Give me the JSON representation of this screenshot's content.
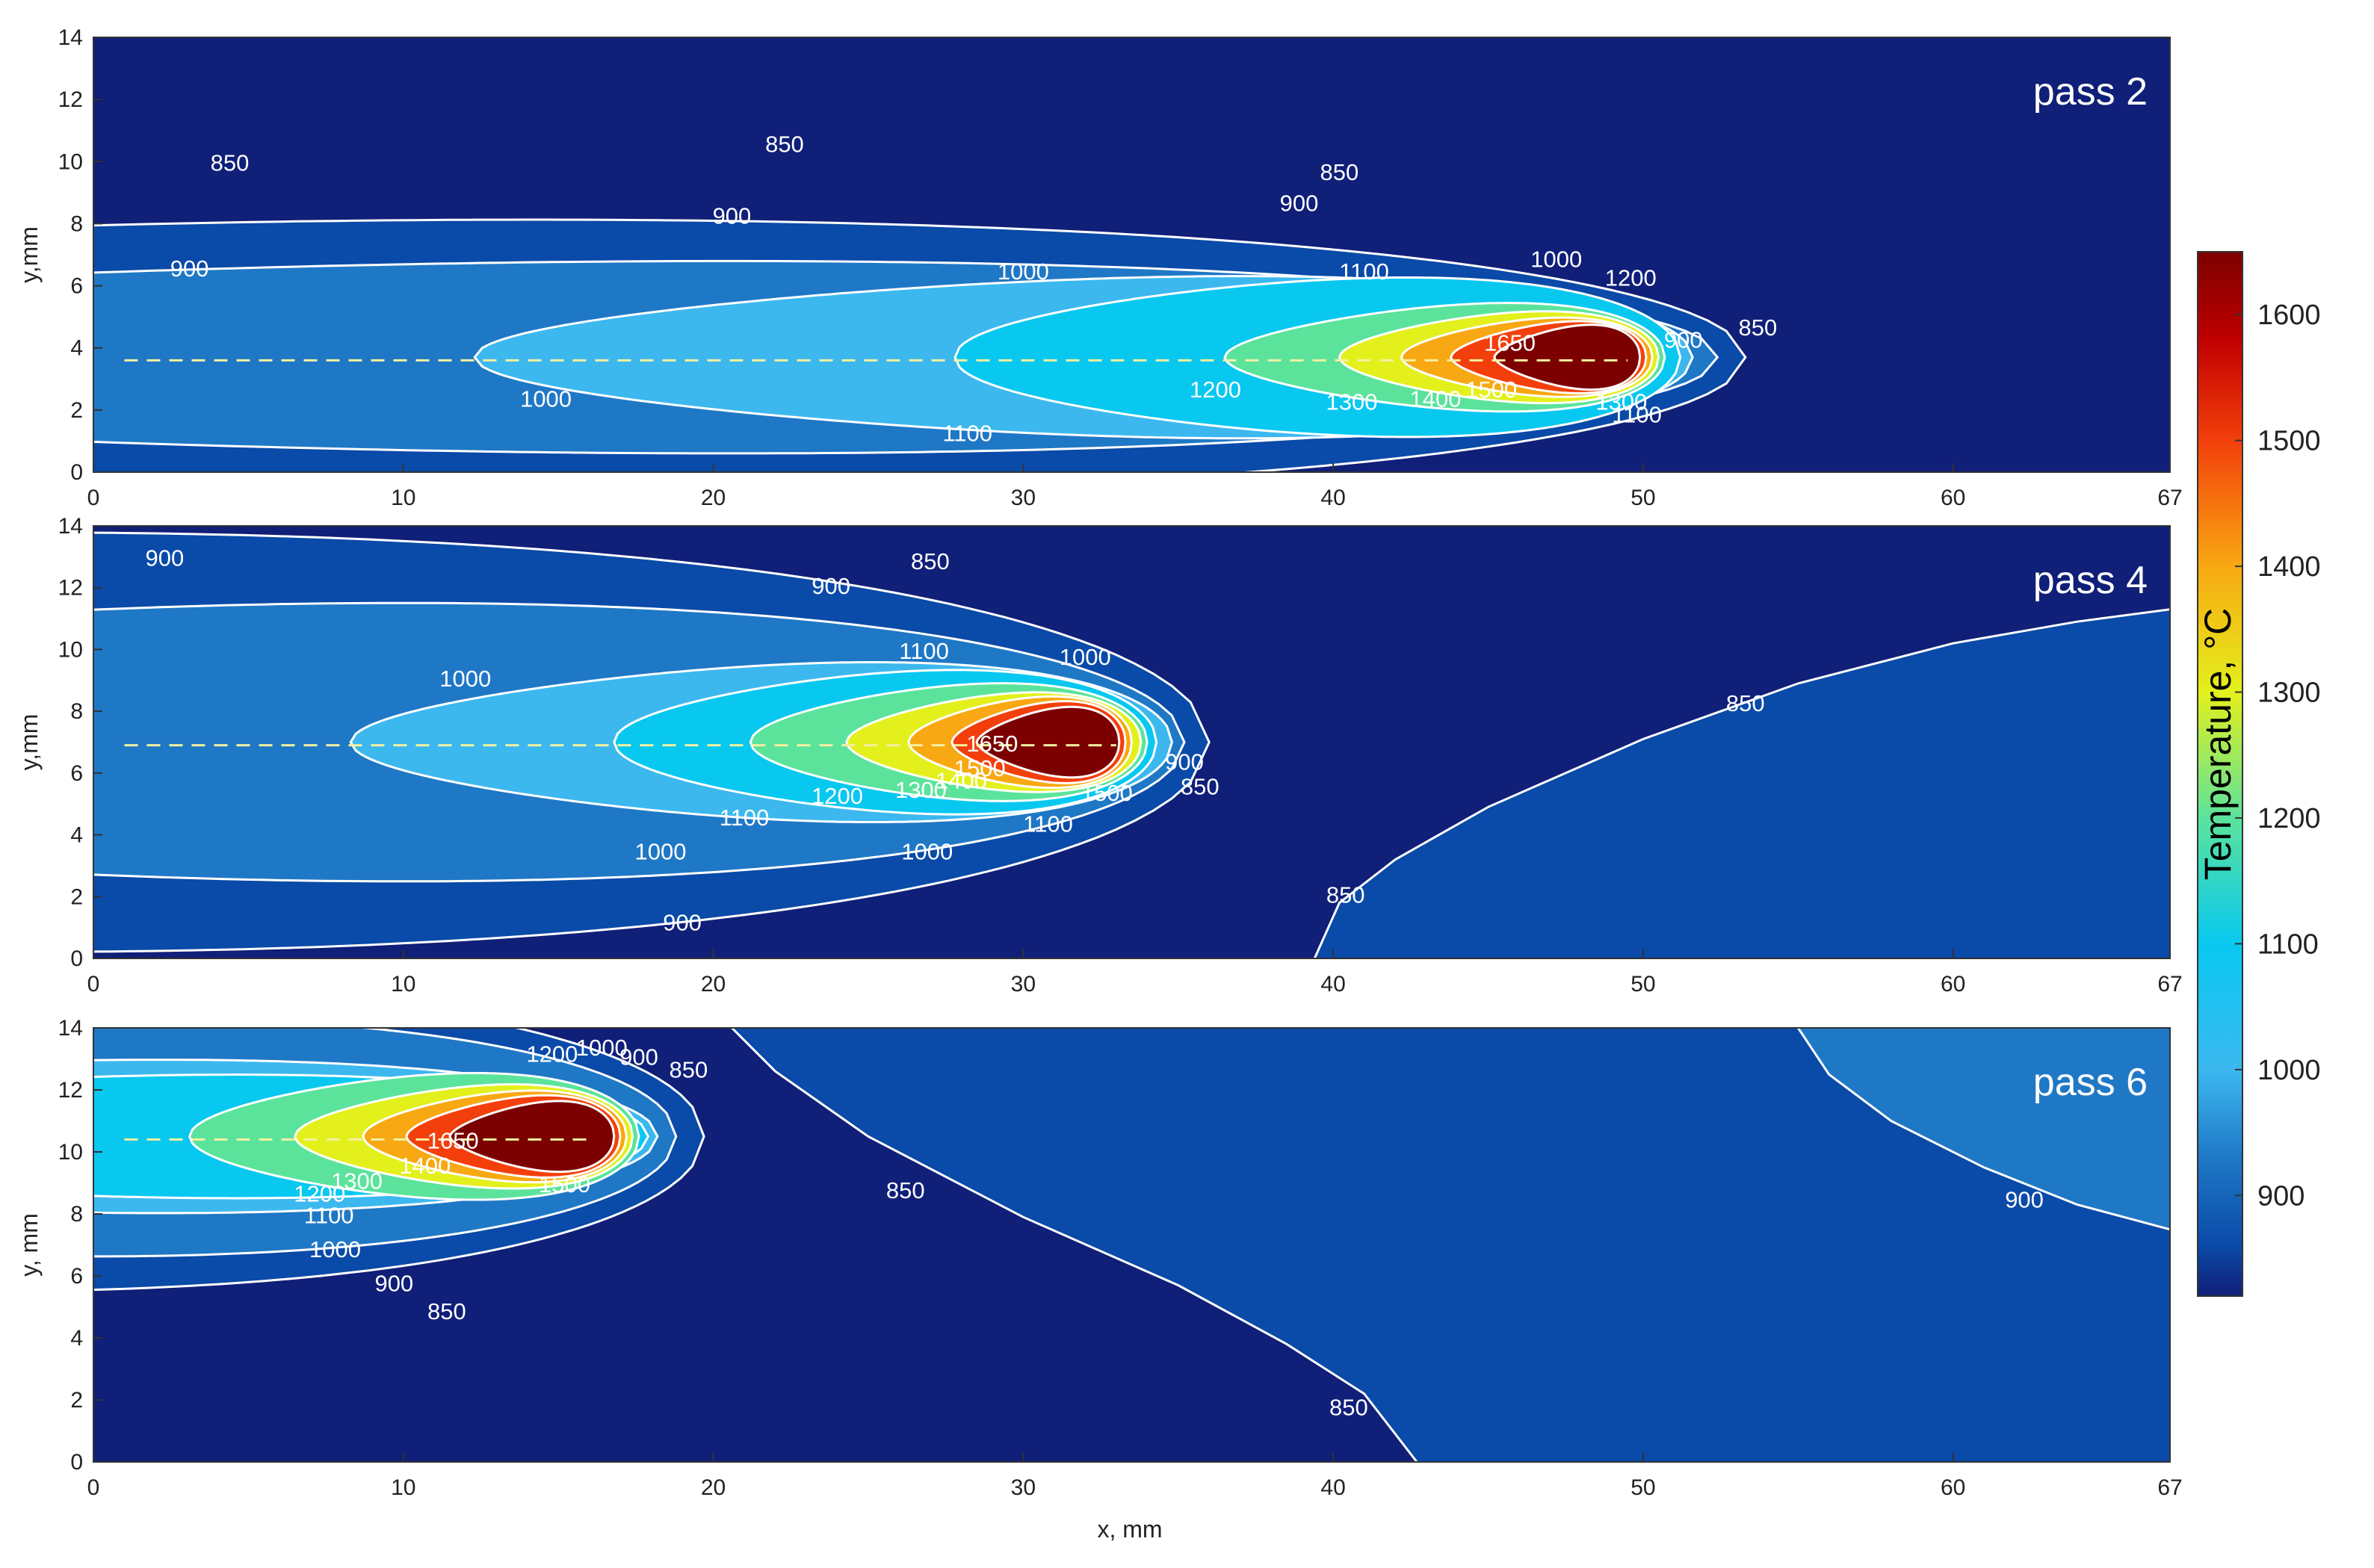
{
  "chart_data": [
    {
      "type": "contour",
      "panel": "pass 2",
      "title": "pass 2",
      "xlabel": "",
      "ylabel": "y,mm",
      "xlim": [
        0,
        67
      ],
      "ylim": [
        0,
        14
      ],
      "xticks": [
        "0",
        "10",
        "20",
        "30",
        "40",
        "50",
        "60",
        "67"
      ],
      "yticks": [
        "0",
        "2",
        "4",
        "6",
        "8",
        "10",
        "12",
        "14"
      ],
      "melt_pool_center": {
        "x": 48.5,
        "y": 3.7
      },
      "scan_line_y": 3.6,
      "scan_line_x_range": [
        1.0,
        49.5
      ],
      "levels": [
        {
          "T": 850,
          "span_x": [
            -45,
            53.3
          ],
          "half_width": 6.2,
          "shape": 0.42,
          "label": "850"
        },
        {
          "T": 900,
          "span_x": [
            -30,
            52.4
          ],
          "half_width": 4.4,
          "shape": 0.45,
          "label": "900"
        },
        {
          "T": 1000,
          "span_x": [
            12.3,
            51.6
          ],
          "half_width": 3.8,
          "shape": 0.5,
          "label": "1000"
        },
        {
          "T": 1100,
          "span_x": [
            27.8,
            51.2
          ],
          "half_width": 3.7,
          "shape": 0.48,
          "label": "1100"
        },
        {
          "T": 1200,
          "span_x": [
            36.5,
            50.7
          ],
          "half_width": 2.6,
          "shape": 0.55,
          "label": "1200"
        },
        {
          "T": 1300,
          "span_x": [
            40.2,
            50.5
          ],
          "half_width": 2.2,
          "shape": 0.55,
          "label": "1300"
        },
        {
          "T": 1400,
          "span_x": [
            42.2,
            50.3
          ],
          "half_width": 1.9,
          "shape": 0.55,
          "label": "1400"
        },
        {
          "T": 1500,
          "span_x": [
            43.8,
            50.1
          ],
          "half_width": 1.75,
          "shape": 0.58,
          "label": "1500"
        },
        {
          "T": 1650,
          "span_x": [
            45.2,
            49.9
          ],
          "half_width": 1.6,
          "shape": 0.62,
          "label": "1650"
        }
      ],
      "labels": [
        {
          "text": "850",
          "x": 4.4,
          "y": 9.9
        },
        {
          "text": "850",
          "x": 22.3,
          "y": 10.5
        },
        {
          "text": "850",
          "x": 40.2,
          "y": 9.6
        },
        {
          "text": "850",
          "x": 53.7,
          "y": 4.6
        },
        {
          "text": "900",
          "x": 3.1,
          "y": 6.5
        },
        {
          "text": "900",
          "x": 20.6,
          "y": 8.2
        },
        {
          "text": "900",
          "x": 38.9,
          "y": 8.6
        },
        {
          "text": "900",
          "x": 51.3,
          "y": 4.2
        },
        {
          "text": "1000",
          "x": 14.6,
          "y": 2.3
        },
        {
          "text": "1000",
          "x": 30.0,
          "y": 6.4
        },
        {
          "text": "1000",
          "x": 47.2,
          "y": 6.8
        },
        {
          "text": "1100",
          "x": 28.2,
          "y": 1.2
        },
        {
          "text": "1100",
          "x": 41.0,
          "y": 6.4
        },
        {
          "text": "1100",
          "x": 49.8,
          "y": 1.8
        },
        {
          "text": "1200",
          "x": 36.2,
          "y": 2.6
        },
        {
          "text": "1200",
          "x": 49.6,
          "y": 6.2
        },
        {
          "text": "1300",
          "x": 40.6,
          "y": 2.2
        },
        {
          "text": "1300",
          "x": 49.3,
          "y": 2.2
        },
        {
          "text": "1400",
          "x": 43.3,
          "y": 2.3
        },
        {
          "text": "1500",
          "x": 45.1,
          "y": 2.6
        },
        {
          "text": "1650",
          "x": 45.7,
          "y": 4.1
        }
      ]
    },
    {
      "type": "contour",
      "panel": "pass 4",
      "title": "pass 4",
      "xlabel": "",
      "ylabel": "y,mm",
      "xlim": [
        0,
        67
      ],
      "ylim": [
        0,
        14
      ],
      "xticks": [
        "0",
        "10",
        "20",
        "30",
        "40",
        "50",
        "60",
        "67"
      ],
      "yticks": [
        "0",
        "2",
        "4",
        "6",
        "8",
        "10",
        "12",
        "14"
      ],
      "melt_pool_center": {
        "x": 31.5,
        "y": 7.0
      },
      "scan_line_y": 6.9,
      "scan_line_x_range": [
        1.0,
        33.0
      ],
      "levels": [
        {
          "T": 850,
          "span_x": [
            -60,
            36.0
          ],
          "half_width": 9.5,
          "shape": 0.42,
          "label": "850"
        },
        {
          "T": 900,
          "span_x": [
            -30,
            35.2
          ],
          "half_width": 6.4,
          "shape": 0.45,
          "label": "900"
        },
        {
          "T": 1000,
          "span_x": [
            8.3,
            34.8
          ],
          "half_width": 3.8,
          "shape": 0.52,
          "label": "1000"
        },
        {
          "T": 1100,
          "span_x": [
            16.8,
            34.3
          ],
          "half_width": 3.4,
          "shape": 0.5,
          "label": "1100"
        },
        {
          "T": 1200,
          "span_x": [
            21.2,
            34.0
          ],
          "half_width": 2.8,
          "shape": 0.52,
          "label": "1200"
        },
        {
          "T": 1300,
          "span_x": [
            24.3,
            33.8
          ],
          "half_width": 2.4,
          "shape": 0.55,
          "label": "1300"
        },
        {
          "T": 1400,
          "span_x": [
            26.3,
            33.5
          ],
          "half_width": 2.2,
          "shape": 0.55,
          "label": "1400"
        },
        {
          "T": 1500,
          "span_x": [
            27.7,
            33.3
          ],
          "half_width": 2.0,
          "shape": 0.58,
          "label": "1500"
        },
        {
          "T": 1650,
          "span_x": [
            28.5,
            33.1
          ],
          "half_width": 1.75,
          "shape": 0.62,
          "label": "1650"
        }
      ],
      "right_contour": {
        "T": 850,
        "points": [
          [
            39.4,
            0
          ],
          [
            40.2,
            1.8
          ],
          [
            42.0,
            3.2
          ],
          [
            45.0,
            4.9
          ],
          [
            50.0,
            7.1
          ],
          [
            55.0,
            8.9
          ],
          [
            60.0,
            10.2
          ],
          [
            64.0,
            10.9
          ],
          [
            67.0,
            11.3
          ]
        ]
      },
      "labels": [
        {
          "text": "900",
          "x": 2.3,
          "y": 12.9
        },
        {
          "text": "900",
          "x": 23.8,
          "y": 12.0
        },
        {
          "text": "900",
          "x": 19.0,
          "y": 1.1
        },
        {
          "text": "850",
          "x": 27.0,
          "y": 12.8
        },
        {
          "text": "850",
          "x": 35.7,
          "y": 5.5
        },
        {
          "text": "850",
          "x": 40.4,
          "y": 2.0
        },
        {
          "text": "850",
          "x": 53.3,
          "y": 8.2
        },
        {
          "text": "900",
          "x": 35.2,
          "y": 6.3
        },
        {
          "text": "1000",
          "x": 12.0,
          "y": 9.0
        },
        {
          "text": "1000",
          "x": 18.3,
          "y": 3.4
        },
        {
          "text": "1000",
          "x": 26.9,
          "y": 3.4
        },
        {
          "text": "1000",
          "x": 32.0,
          "y": 9.7
        },
        {
          "text": "1100",
          "x": 26.8,
          "y": 9.9
        },
        {
          "text": "1100",
          "x": 21.0,
          "y": 4.5
        },
        {
          "text": "1100",
          "x": 30.8,
          "y": 4.3
        },
        {
          "text": "1200",
          "x": 24.0,
          "y": 5.2
        },
        {
          "text": "1300",
          "x": 26.7,
          "y": 5.4
        },
        {
          "text": "1400",
          "x": 28.0,
          "y": 5.7
        },
        {
          "text": "1500",
          "x": 28.6,
          "y": 6.1
        },
        {
          "text": "1650",
          "x": 29.0,
          "y": 6.9
        },
        {
          "text": "1500",
          "x": 32.7,
          "y": 5.3
        }
      ]
    },
    {
      "type": "contour",
      "panel": "pass 6",
      "title": "pass 6",
      "xlabel": "x, mm",
      "ylabel": "y, mm",
      "xlim": [
        0,
        67
      ],
      "ylim": [
        0,
        14
      ],
      "xticks": [
        "0",
        "10",
        "20",
        "30",
        "40",
        "50",
        "60",
        "67"
      ],
      "yticks": [
        "0",
        "2",
        "4",
        "6",
        "8",
        "10",
        "12",
        "14"
      ],
      "melt_pool_center": {
        "x": 14.5,
        "y": 10.5
      },
      "scan_line_y": 10.4,
      "scan_line_x_range": [
        1.0,
        16.0
      ],
      "levels": [
        {
          "T": 850,
          "span_x": [
            -40,
            19.7
          ],
          "half_width": 7.0,
          "shape": 0.42,
          "label": "850"
        },
        {
          "T": 900,
          "span_x": [
            -30,
            18.8
          ],
          "half_width": 5.5,
          "shape": 0.45,
          "label": "900"
        },
        {
          "T": 1000,
          "span_x": [
            -25,
            18.2
          ],
          "half_width": 3.6,
          "shape": 0.5,
          "label": "1000"
        },
        {
          "T": 1100,
          "span_x": [
            -18,
            17.9
          ],
          "half_width": 2.9,
          "shape": 0.5,
          "label": "1100"
        },
        {
          "T": 1200,
          "span_x": [
            3.1,
            17.6
          ],
          "half_width": 3.0,
          "shape": 0.52,
          "label": "1200"
        },
        {
          "T": 1300,
          "span_x": [
            6.5,
            17.4
          ],
          "half_width": 2.5,
          "shape": 0.55,
          "label": "1300"
        },
        {
          "T": 1400,
          "span_x": [
            8.7,
            17.2
          ],
          "half_width": 2.2,
          "shape": 0.55,
          "label": "1400"
        },
        {
          "T": 1500,
          "span_x": [
            10.1,
            17.0
          ],
          "half_width": 2.0,
          "shape": 0.58,
          "label": "1500"
        },
        {
          "T": 1650,
          "span_x": [
            11.5,
            16.8
          ],
          "half_width": 1.75,
          "shape": 0.62,
          "label": "1650"
        }
      ],
      "right_contours": [
        {
          "T": 850,
          "points": [
            [
              20.6,
              14
            ],
            [
              22.0,
              12.6
            ],
            [
              25.0,
              10.5
            ],
            [
              30.0,
              7.9
            ],
            [
              35.0,
              5.7
            ],
            [
              38.5,
              3.8
            ],
            [
              41.0,
              2.2
            ],
            [
              42.7,
              0
            ]
          ]
        },
        {
          "T": 900,
          "points": [
            [
              55.0,
              14
            ],
            [
              56.0,
              12.5
            ],
            [
              58.0,
              11.0
            ],
            [
              61.0,
              9.5
            ],
            [
              64.0,
              8.3
            ],
            [
              67.0,
              7.5
            ]
          ]
        }
      ],
      "labels": [
        {
          "text": "850",
          "x": 19.2,
          "y": 12.6
        },
        {
          "text": "850",
          "x": 11.4,
          "y": 4.8
        },
        {
          "text": "850",
          "x": 26.2,
          "y": 8.7
        },
        {
          "text": "850",
          "x": 40.5,
          "y": 1.7
        },
        {
          "text": "900",
          "x": 17.6,
          "y": 13.0
        },
        {
          "text": "900",
          "x": 9.7,
          "y": 5.7
        },
        {
          "text": "900",
          "x": 62.3,
          "y": 8.4
        },
        {
          "text": "1000",
          "x": 16.4,
          "y": 13.3
        },
        {
          "text": "1000",
          "x": 7.8,
          "y": 6.8
        },
        {
          "text": "1100",
          "x": 7.6,
          "y": 7.9
        },
        {
          "text": "1200",
          "x": 7.3,
          "y": 8.6
        },
        {
          "text": "1200",
          "x": 14.8,
          "y": 13.1
        },
        {
          "text": "1300",
          "x": 8.5,
          "y": 9.0
        },
        {
          "text": "1400",
          "x": 10.7,
          "y": 9.5
        },
        {
          "text": "1500",
          "x": 15.2,
          "y": 8.9
        },
        {
          "text": "1650",
          "x": 11.6,
          "y": 10.3
        }
      ]
    }
  ],
  "colorbar": {
    "title": "Temperature, °C",
    "range": [
      820,
      1650
    ],
    "ticks": [
      {
        "value": 900,
        "label": "900"
      },
      {
        "value": 1000,
        "label": "1000"
      },
      {
        "value": 1100,
        "label": "1100"
      },
      {
        "value": 1200,
        "label": "1200"
      },
      {
        "value": 1300,
        "label": "1300"
      },
      {
        "value": 1400,
        "label": "1400"
      },
      {
        "value": 1500,
        "label": "1500"
      },
      {
        "value": 1600,
        "label": "1600"
      }
    ]
  },
  "colors": {
    "below_850": "#101f78",
    "850": "#0a4aa8",
    "900": "#1f78c6",
    "1000": "#3cb8ef",
    "1100": "#08c8f0",
    "1200": "#5be39c",
    "1300": "#e3f01c",
    "1400": "#f8a812",
    "1500": "#f33f0c",
    "1650": "#7c0000"
  }
}
